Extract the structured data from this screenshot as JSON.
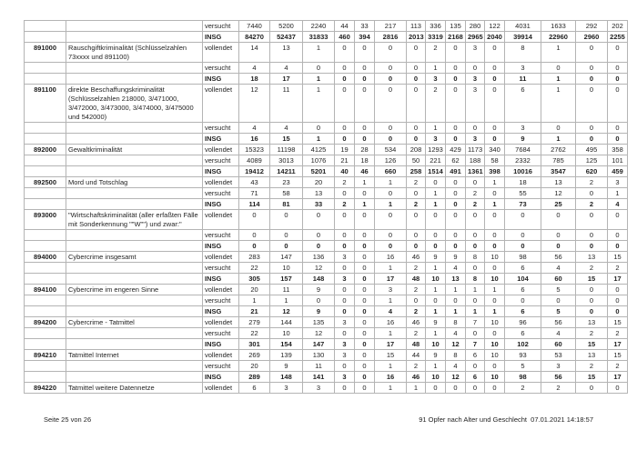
{
  "table": {
    "type_labels": {
      "attempted": "versucht",
      "completed": "vollendet",
      "total": "INSG"
    },
    "rows": [
      {
        "code": "",
        "desc": "",
        "type": "versucht",
        "bold": false,
        "values": [
          "7440",
          "5200",
          "2240",
          "44",
          "33",
          "217",
          "113",
          "336",
          "135",
          "280",
          "122",
          "4031",
          "1633",
          "292",
          "202"
        ]
      },
      {
        "code": "",
        "desc": "",
        "type": "INSG",
        "bold": true,
        "values": [
          "84270",
          "52437",
          "31833",
          "460",
          "394",
          "2816",
          "2013",
          "3319",
          "2168",
          "2965",
          "2040",
          "39914",
          "22960",
          "2960",
          "2255"
        ]
      },
      {
        "code": "891000",
        "desc": "Rauschgiftkriminalität (Schlüsselzahlen 73xxxx und 891100)",
        "type": "vollendet",
        "bold": false,
        "values": [
          "14",
          "13",
          "1",
          "0",
          "0",
          "0",
          "0",
          "2",
          "0",
          "3",
          "0",
          "8",
          "1",
          "0",
          "0"
        ]
      },
      {
        "code": "",
        "desc": "",
        "type": "versucht",
        "bold": false,
        "values": [
          "4",
          "4",
          "0",
          "0",
          "0",
          "0",
          "0",
          "1",
          "0",
          "0",
          "0",
          "3",
          "0",
          "0",
          "0"
        ]
      },
      {
        "code": "",
        "desc": "",
        "type": "INSG",
        "bold": true,
        "values": [
          "18",
          "17",
          "1",
          "0",
          "0",
          "0",
          "0",
          "3",
          "0",
          "3",
          "0",
          "11",
          "1",
          "0",
          "0"
        ]
      },
      {
        "code": "891100",
        "desc": "direkte Beschaffungskriminalität (Schlüsselzahlen 218000, 3/471000, 3/472000, 3/473000, 3/474000, 3/475000 und 542000)",
        "type": "vollendet",
        "bold": false,
        "values": [
          "12",
          "11",
          "1",
          "0",
          "0",
          "0",
          "0",
          "2",
          "0",
          "3",
          "0",
          "6",
          "1",
          "0",
          "0"
        ]
      },
      {
        "code": "",
        "desc": "",
        "type": "versucht",
        "bold": false,
        "values": [
          "4",
          "4",
          "0",
          "0",
          "0",
          "0",
          "0",
          "1",
          "0",
          "0",
          "0",
          "3",
          "0",
          "0",
          "0"
        ]
      },
      {
        "code": "",
        "desc": "",
        "type": "INSG",
        "bold": true,
        "values": [
          "16",
          "15",
          "1",
          "0",
          "0",
          "0",
          "0",
          "3",
          "0",
          "3",
          "0",
          "9",
          "1",
          "0",
          "0"
        ]
      },
      {
        "code": "892000",
        "desc": "Gewaltkriminalität",
        "type": "vollendet",
        "bold": false,
        "values": [
          "15323",
          "11198",
          "4125",
          "19",
          "28",
          "534",
          "208",
          "1293",
          "429",
          "1173",
          "340",
          "7684",
          "2762",
          "495",
          "358"
        ]
      },
      {
        "code": "",
        "desc": "",
        "type": "versucht",
        "bold": false,
        "values": [
          "4089",
          "3013",
          "1076",
          "21",
          "18",
          "126",
          "50",
          "221",
          "62",
          "188",
          "58",
          "2332",
          "785",
          "125",
          "101"
        ]
      },
      {
        "code": "",
        "desc": "",
        "type": "INSG",
        "bold": true,
        "values": [
          "19412",
          "14211",
          "5201",
          "40",
          "46",
          "660",
          "258",
          "1514",
          "491",
          "1361",
          "398",
          "10016",
          "3547",
          "620",
          "459"
        ]
      },
      {
        "code": "892500",
        "desc": "Mord und Totschlag",
        "type": "vollendet",
        "bold": false,
        "values": [
          "43",
          "23",
          "20",
          "2",
          "1",
          "1",
          "2",
          "0",
          "0",
          "0",
          "1",
          "18",
          "13",
          "2",
          "3"
        ]
      },
      {
        "code": "",
        "desc": "",
        "type": "versucht",
        "bold": false,
        "values": [
          "71",
          "58",
          "13",
          "0",
          "0",
          "0",
          "0",
          "1",
          "0",
          "2",
          "0",
          "55",
          "12",
          "0",
          "1"
        ]
      },
      {
        "code": "",
        "desc": "",
        "type": "INSG",
        "bold": true,
        "values": [
          "114",
          "81",
          "33",
          "2",
          "1",
          "1",
          "2",
          "1",
          "0",
          "2",
          "1",
          "73",
          "25",
          "2",
          "4"
        ]
      },
      {
        "code": "893000",
        "desc": "\"Wirtschaftskriminalität (aller erfaßten Fälle mit Sonderkennung \"\"W\"\") und zwar:\"",
        "type": "vollendet",
        "bold": false,
        "values": [
          "0",
          "0",
          "0",
          "0",
          "0",
          "0",
          "0",
          "0",
          "0",
          "0",
          "0",
          "0",
          "0",
          "0",
          "0"
        ]
      },
      {
        "code": "",
        "desc": "",
        "type": "versucht",
        "bold": false,
        "values": [
          "0",
          "0",
          "0",
          "0",
          "0",
          "0",
          "0",
          "0",
          "0",
          "0",
          "0",
          "0",
          "0",
          "0",
          "0"
        ]
      },
      {
        "code": "",
        "desc": "",
        "type": "INSG",
        "bold": true,
        "values": [
          "0",
          "0",
          "0",
          "0",
          "0",
          "0",
          "0",
          "0",
          "0",
          "0",
          "0",
          "0",
          "0",
          "0",
          "0"
        ]
      },
      {
        "code": "894000",
        "desc": "Cybercrime insgesamt",
        "type": "vollendet",
        "bold": false,
        "values": [
          "283",
          "147",
          "136",
          "3",
          "0",
          "16",
          "46",
          "9",
          "9",
          "8",
          "10",
          "98",
          "56",
          "13",
          "15"
        ]
      },
      {
        "code": "",
        "desc": "",
        "type": "versucht",
        "bold": false,
        "values": [
          "22",
          "10",
          "12",
          "0",
          "0",
          "1",
          "2",
          "1",
          "4",
          "0",
          "0",
          "6",
          "4",
          "2",
          "2"
        ]
      },
      {
        "code": "",
        "desc": "",
        "type": "INSG",
        "bold": true,
        "values": [
          "305",
          "157",
          "148",
          "3",
          "0",
          "17",
          "48",
          "10",
          "13",
          "8",
          "10",
          "104",
          "60",
          "15",
          "17"
        ]
      },
      {
        "code": "894100",
        "desc": "Cybercrime im engeren Sinne",
        "type": "vollendet",
        "bold": false,
        "values": [
          "20",
          "11",
          "9",
          "0",
          "0",
          "3",
          "2",
          "1",
          "1",
          "1",
          "1",
          "6",
          "5",
          "0",
          "0"
        ]
      },
      {
        "code": "",
        "desc": "",
        "type": "versucht",
        "bold": false,
        "values": [
          "1",
          "1",
          "0",
          "0",
          "0",
          "1",
          "0",
          "0",
          "0",
          "0",
          "0",
          "0",
          "0",
          "0",
          "0"
        ]
      },
      {
        "code": "",
        "desc": "",
        "type": "INSG",
        "bold": true,
        "values": [
          "21",
          "12",
          "9",
          "0",
          "0",
          "4",
          "2",
          "1",
          "1",
          "1",
          "1",
          "6",
          "5",
          "0",
          "0"
        ]
      },
      {
        "code": "894200",
        "desc": "Cybercrime - Tatmittel",
        "type": "vollendet",
        "bold": false,
        "values": [
          "279",
          "144",
          "135",
          "3",
          "0",
          "16",
          "46",
          "9",
          "8",
          "7",
          "10",
          "96",
          "56",
          "13",
          "15"
        ]
      },
      {
        "code": "",
        "desc": "",
        "type": "versucht",
        "bold": false,
        "values": [
          "22",
          "10",
          "12",
          "0",
          "0",
          "1",
          "2",
          "1",
          "4",
          "0",
          "0",
          "6",
          "4",
          "2",
          "2"
        ]
      },
      {
        "code": "",
        "desc": "",
        "type": "INSG",
        "bold": true,
        "values": [
          "301",
          "154",
          "147",
          "3",
          "0",
          "17",
          "48",
          "10",
          "12",
          "7",
          "10",
          "102",
          "60",
          "15",
          "17"
        ]
      },
      {
        "code": "894210",
        "desc": "Tatmittel Internet",
        "type": "vollendet",
        "bold": false,
        "values": [
          "269",
          "139",
          "130",
          "3",
          "0",
          "15",
          "44",
          "9",
          "8",
          "6",
          "10",
          "93",
          "53",
          "13",
          "15"
        ]
      },
      {
        "code": "",
        "desc": "",
        "type": "versucht",
        "bold": false,
        "values": [
          "20",
          "9",
          "11",
          "0",
          "0",
          "1",
          "2",
          "1",
          "4",
          "0",
          "0",
          "5",
          "3",
          "2",
          "2"
        ]
      },
      {
        "code": "",
        "desc": "",
        "type": "INSG",
        "bold": true,
        "values": [
          "289",
          "148",
          "141",
          "3",
          "0",
          "16",
          "46",
          "10",
          "12",
          "6",
          "10",
          "98",
          "56",
          "15",
          "17"
        ]
      },
      {
        "code": "894220",
        "desc": "Tatmittel weitere Datennetze",
        "type": "vollendet",
        "bold": false,
        "values": [
          "6",
          "3",
          "3",
          "0",
          "0",
          "1",
          "1",
          "0",
          "0",
          "0",
          "0",
          "2",
          "2",
          "0",
          "0"
        ]
      }
    ]
  },
  "footer": {
    "left": "Seite 25 von 26",
    "right": "91 Opfer nach Alter und Geschlecht  07.01.2021 14:18:57"
  }
}
